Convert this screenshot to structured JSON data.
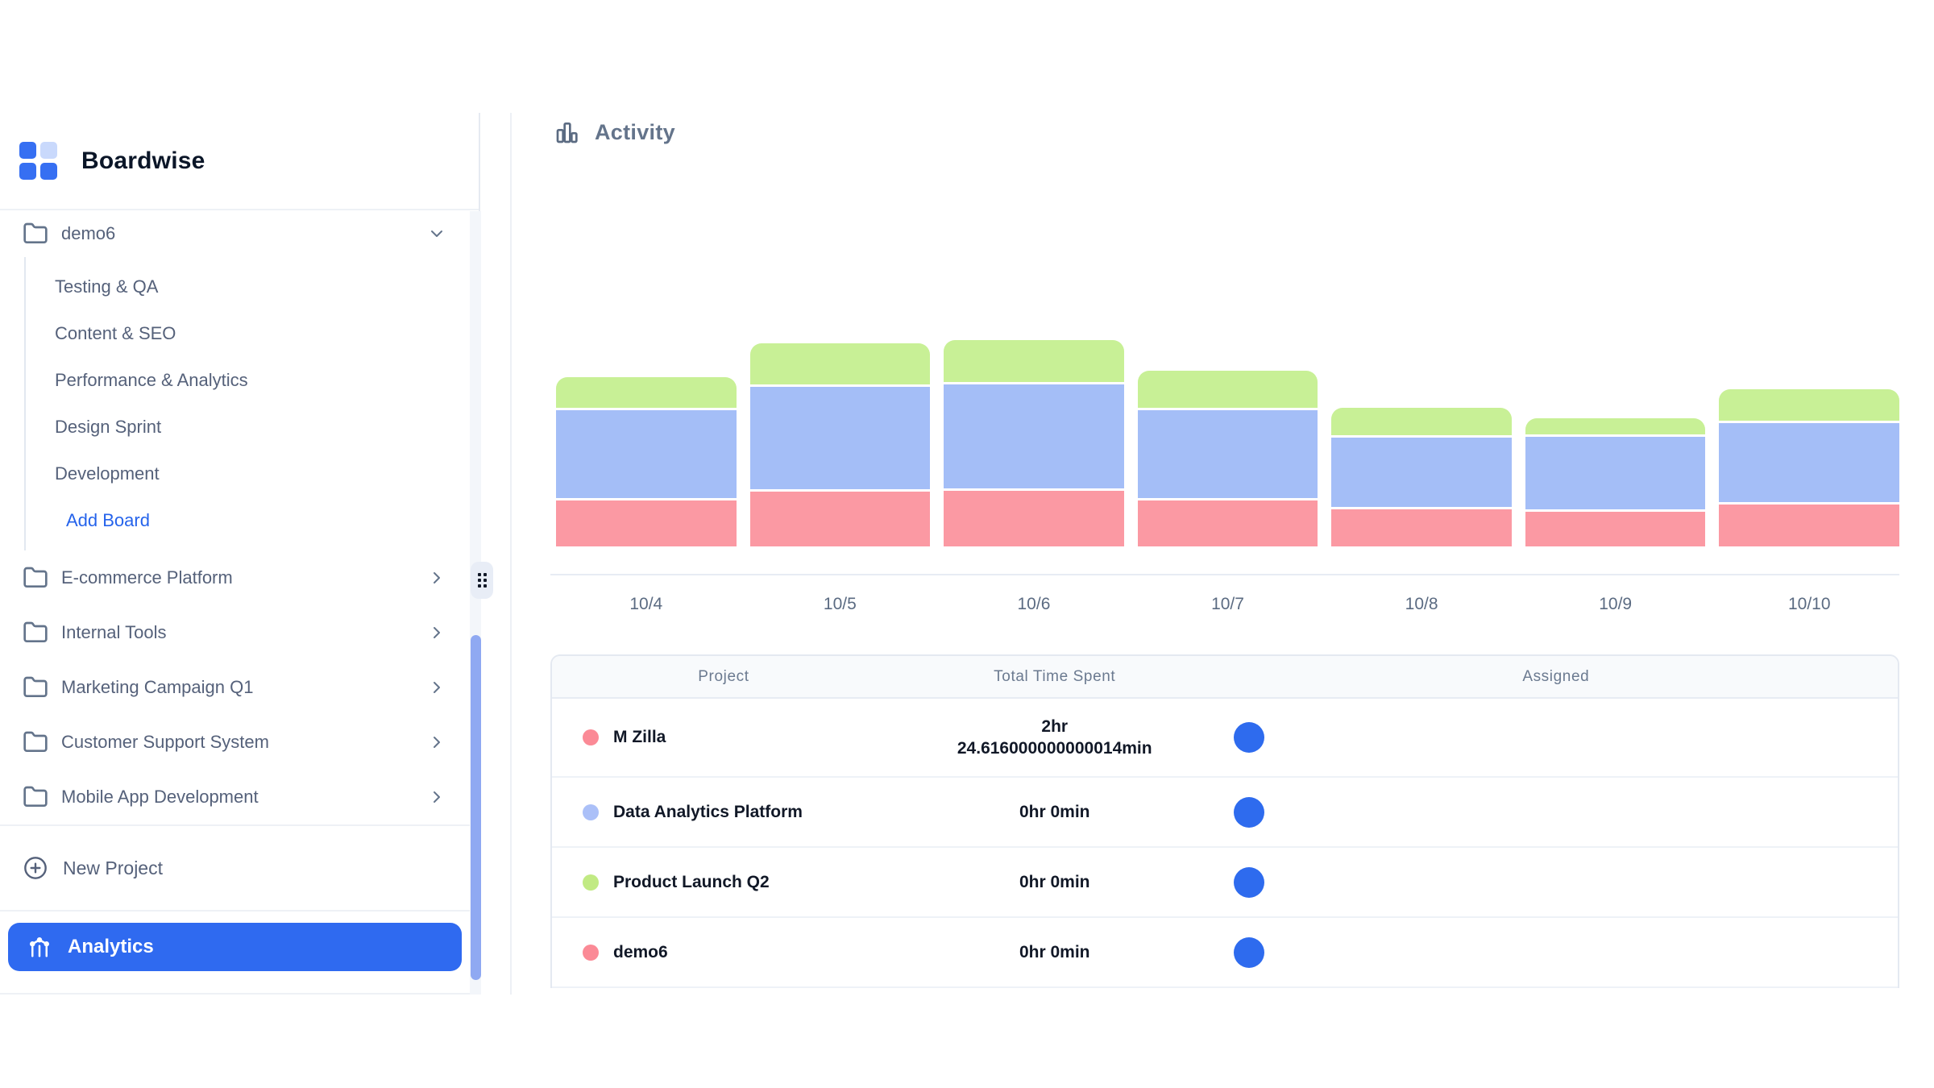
{
  "app": {
    "name": "Boardwise"
  },
  "colors": {
    "accent_blue": "#2f6af0",
    "logo_blue": "#366ff2",
    "logo_light_blue": "#c9d9fc",
    "avatar_blue": "#2e6bee",
    "bar_pink": "#fb99a3",
    "bar_blue": "#a4bef7",
    "bar_green": "#c8f096",
    "sidebar_text": "#55617a",
    "border": "#e6eaf1",
    "table_header_bg": "#f8fafc"
  },
  "sidebar": {
    "projects": [
      {
        "label": "demo6",
        "expanded": true,
        "children": [
          "Testing & QA",
          "Content & SEO",
          "Performance & Analytics",
          "Design Sprint",
          "Development"
        ],
        "add_board_label": "Add Board"
      },
      {
        "label": "E-commerce Platform",
        "expanded": false
      },
      {
        "label": "Internal Tools",
        "expanded": false
      },
      {
        "label": "Marketing Campaign Q1",
        "expanded": false
      },
      {
        "label": "Customer Support System",
        "expanded": false
      },
      {
        "label": "Mobile App Development",
        "expanded": false
      }
    ],
    "new_project_label": "New Project",
    "analytics_label": "Analytics"
  },
  "main": {
    "title": "Activity",
    "chart_data": {
      "type": "bar",
      "stacked": true,
      "title": "Activity",
      "categories": [
        "10/4",
        "10/5",
        "10/6",
        "10/7",
        "10/8",
        "10/9",
        "10/10"
      ],
      "series": [
        {
          "name": "M Zilla",
          "color": "#fb99a3",
          "values": [
            57,
            68,
            69,
            57,
            46,
            43,
            52
          ]
        },
        {
          "name": "Data Analytics Platform",
          "color": "#a4bef7",
          "values": [
            109,
            127,
            129,
            109,
            86,
            90,
            98
          ]
        },
        {
          "name": "Product Launch Q2",
          "color": "#c8f096",
          "values": [
            38,
            51,
            52,
            46,
            34,
            20,
            39
          ]
        }
      ],
      "value_unit": "relative bar-segment height, px (no y-axis labels shown)",
      "xlabel": "",
      "ylabel": "",
      "grid": false,
      "legend": "none",
      "bar_corner": "rounded-top"
    },
    "table": {
      "columns": [
        "Project",
        "Total Time Spent",
        "Assigned"
      ],
      "rows": [
        {
          "project": "M Zilla",
          "dot_color": "#fb8a96",
          "time_lines": [
            "2hr",
            "24.616000000000014min"
          ],
          "avatar_color": "#2e6bee"
        },
        {
          "project": "Data Analytics Platform",
          "dot_color": "#abc0f8",
          "time_lines": [
            "0hr 0min"
          ],
          "avatar_color": "#2e6bee"
        },
        {
          "project": "Product Launch Q2",
          "dot_color": "#c1ea83",
          "time_lines": [
            "0hr 0min"
          ],
          "avatar_color": "#2e6bee"
        },
        {
          "project": "demo6",
          "dot_color": "#fb8a96",
          "time_lines": [
            "0hr 0min"
          ],
          "avatar_color": "#2e6bee"
        }
      ]
    }
  }
}
